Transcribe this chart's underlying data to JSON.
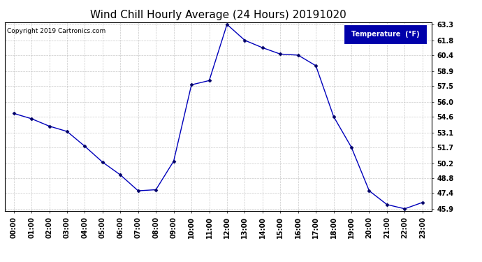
{
  "title": "Wind Chill Hourly Average (24 Hours) 20191020",
  "copyright": "Copyright 2019 Cartronics.com",
  "legend_label": "Temperature  (°F)",
  "hours": [
    "00:00",
    "01:00",
    "02:00",
    "03:00",
    "04:00",
    "05:00",
    "06:00",
    "07:00",
    "08:00",
    "09:00",
    "10:00",
    "11:00",
    "12:00",
    "13:00",
    "14:00",
    "15:00",
    "16:00",
    "17:00",
    "18:00",
    "19:00",
    "20:00",
    "21:00",
    "22:00",
    "23:00"
  ],
  "values": [
    54.9,
    54.4,
    53.7,
    53.2,
    51.8,
    50.3,
    49.1,
    47.6,
    47.7,
    50.4,
    57.6,
    58.0,
    63.3,
    61.8,
    61.1,
    60.5,
    60.4,
    59.4,
    54.6,
    51.7,
    47.6,
    46.3,
    45.9,
    46.5
  ],
  "ylim_min": 45.9,
  "ylim_max": 63.3,
  "yticks": [
    45.9,
    47.4,
    48.8,
    50.2,
    51.7,
    53.1,
    54.6,
    56.0,
    57.5,
    58.9,
    60.4,
    61.8,
    63.3
  ],
  "line_color": "#0000bb",
  "marker_color": "#000066",
  "background_color": "#ffffff",
  "plot_bg_color": "#ffffff",
  "grid_color": "#bbbbbb",
  "title_fontsize": 11,
  "legend_bg_color": "#0000aa",
  "legend_text_color": "#ffffff",
  "tick_fontsize": 7,
  "copyright_fontsize": 6.5
}
